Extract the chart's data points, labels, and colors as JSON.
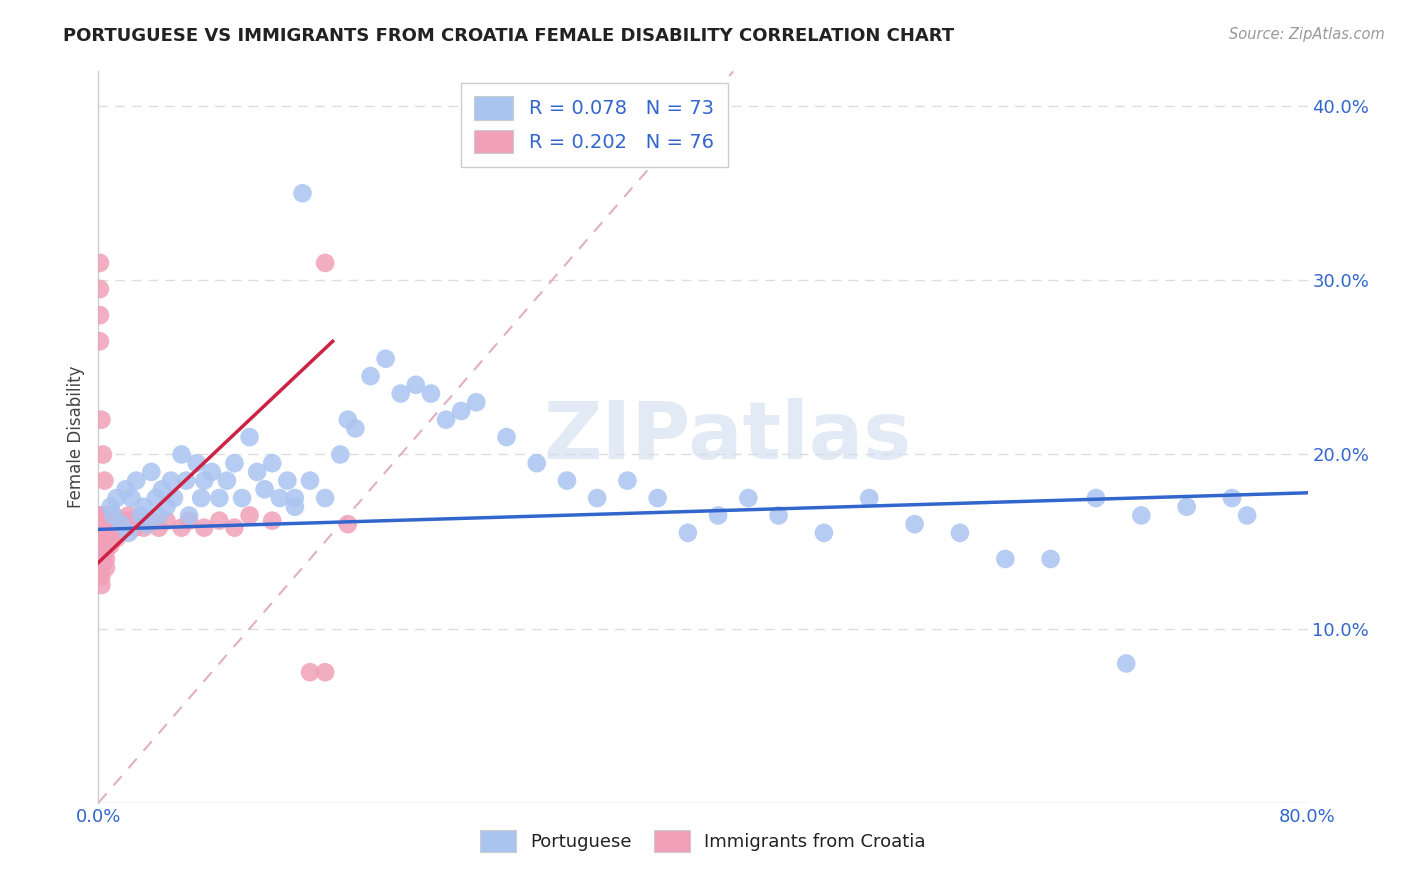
{
  "title": "PORTUGUESE VS IMMIGRANTS FROM CROATIA FEMALE DISABILITY CORRELATION CHART",
  "source": "Source: ZipAtlas.com",
  "ylabel": "Female Disability",
  "xlim": [
    0.0,
    0.8
  ],
  "ylim": [
    0.0,
    0.42
  ],
  "blue_color": "#aac4f0",
  "pink_color": "#f0a0b8",
  "trend_blue": "#3366cc",
  "trend_pink": "#cc2244",
  "diag_color": "#d0b0c0",
  "grid_color": "#dddddd",
  "portuguese_x": [
    0.008,
    0.01,
    0.012,
    0.015,
    0.018,
    0.02,
    0.022,
    0.025,
    0.028,
    0.03,
    0.032,
    0.035,
    0.038,
    0.04,
    0.042,
    0.045,
    0.048,
    0.05,
    0.055,
    0.058,
    0.06,
    0.065,
    0.068,
    0.07,
    0.075,
    0.08,
    0.085,
    0.09,
    0.095,
    0.1,
    0.105,
    0.11,
    0.115,
    0.12,
    0.125,
    0.13,
    0.135,
    0.14,
    0.15,
    0.16,
    0.165,
    0.17,
    0.18,
    0.19,
    0.2,
    0.21,
    0.22,
    0.23,
    0.24,
    0.25,
    0.27,
    0.29,
    0.31,
    0.33,
    0.35,
    0.37,
    0.39,
    0.41,
    0.43,
    0.45,
    0.48,
    0.51,
    0.54,
    0.57,
    0.6,
    0.63,
    0.66,
    0.69,
    0.72,
    0.75,
    0.76,
    0.13,
    0.68
  ],
  "portuguese_y": [
    0.17,
    0.165,
    0.175,
    0.16,
    0.18,
    0.155,
    0.175,
    0.185,
    0.165,
    0.17,
    0.16,
    0.19,
    0.175,
    0.165,
    0.18,
    0.17,
    0.185,
    0.175,
    0.2,
    0.185,
    0.165,
    0.195,
    0.175,
    0.185,
    0.19,
    0.175,
    0.185,
    0.195,
    0.175,
    0.21,
    0.19,
    0.18,
    0.195,
    0.175,
    0.185,
    0.175,
    0.35,
    0.185,
    0.175,
    0.2,
    0.22,
    0.215,
    0.245,
    0.255,
    0.235,
    0.24,
    0.235,
    0.22,
    0.225,
    0.23,
    0.21,
    0.195,
    0.185,
    0.175,
    0.185,
    0.175,
    0.155,
    0.165,
    0.175,
    0.165,
    0.155,
    0.175,
    0.16,
    0.155,
    0.14,
    0.14,
    0.175,
    0.165,
    0.17,
    0.175,
    0.165,
    0.17,
    0.08
  ],
  "croatia_x": [
    0.001,
    0.001,
    0.001,
    0.001,
    0.002,
    0.002,
    0.002,
    0.002,
    0.002,
    0.003,
    0.003,
    0.003,
    0.003,
    0.003,
    0.003,
    0.004,
    0.004,
    0.004,
    0.004,
    0.004,
    0.005,
    0.005,
    0.005,
    0.005,
    0.005,
    0.005,
    0.005,
    0.006,
    0.006,
    0.006,
    0.006,
    0.007,
    0.007,
    0.007,
    0.008,
    0.008,
    0.008,
    0.009,
    0.009,
    0.01,
    0.01,
    0.011,
    0.012,
    0.012,
    0.013,
    0.014,
    0.015,
    0.016,
    0.017,
    0.018,
    0.02,
    0.022,
    0.024,
    0.026,
    0.03,
    0.035,
    0.04,
    0.045,
    0.055,
    0.06,
    0.07,
    0.08,
    0.09,
    0.1,
    0.115,
    0.14,
    0.15,
    0.165,
    0.001,
    0.001,
    0.001,
    0.001,
    0.002,
    0.003,
    0.004,
    0.15
  ],
  "croatia_y": [
    0.165,
    0.16,
    0.155,
    0.15,
    0.145,
    0.14,
    0.135,
    0.13,
    0.125,
    0.165,
    0.16,
    0.155,
    0.15,
    0.145,
    0.14,
    0.165,
    0.16,
    0.155,
    0.15,
    0.145,
    0.165,
    0.16,
    0.155,
    0.15,
    0.145,
    0.14,
    0.135,
    0.165,
    0.16,
    0.155,
    0.15,
    0.165,
    0.158,
    0.152,
    0.162,
    0.157,
    0.148,
    0.162,
    0.155,
    0.165,
    0.158,
    0.162,
    0.158,
    0.152,
    0.16,
    0.158,
    0.162,
    0.16,
    0.158,
    0.162,
    0.165,
    0.162,
    0.158,
    0.162,
    0.158,
    0.162,
    0.158,
    0.162,
    0.158,
    0.162,
    0.158,
    0.162,
    0.158,
    0.165,
    0.162,
    0.075,
    0.31,
    0.16,
    0.31,
    0.295,
    0.28,
    0.265,
    0.22,
    0.2,
    0.185,
    0.075
  ]
}
